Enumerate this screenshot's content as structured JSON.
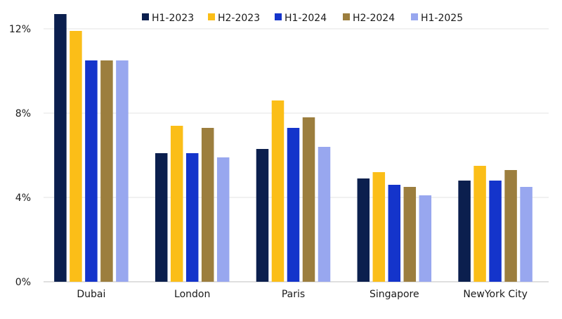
{
  "chart_data": {
    "type": "bar",
    "title": "",
    "xlabel": "",
    "ylabel": "",
    "categories": [
      "Dubai",
      "London",
      "Paris",
      "Singapore",
      "NewYork City"
    ],
    "ylim": [
      0,
      12.7
    ],
    "yticks": [
      0,
      4,
      8,
      12
    ],
    "ytick_labels": [
      "0%",
      "4%",
      "8%",
      "12%"
    ],
    "grid": true,
    "legend_position": "top",
    "series": [
      {
        "name": "H1-2023",
        "color": "#0b1f4e",
        "values": [
          12.7,
          6.1,
          6.3,
          4.9,
          4.8
        ]
      },
      {
        "name": "H2-2023",
        "color": "#fbbe18",
        "values": [
          11.9,
          7.4,
          8.6,
          5.2,
          5.5
        ]
      },
      {
        "name": "H1-2024",
        "color": "#1434cb",
        "values": [
          10.5,
          6.1,
          7.3,
          4.6,
          4.8
        ]
      },
      {
        "name": "H2-2024",
        "color": "#9c7e3e",
        "values": [
          10.5,
          7.3,
          7.8,
          4.5,
          5.3
        ]
      },
      {
        "name": "H1-2025",
        "color": "#98a7ef",
        "values": [
          10.5,
          5.9,
          6.4,
          4.1,
          4.5
        ]
      }
    ]
  }
}
